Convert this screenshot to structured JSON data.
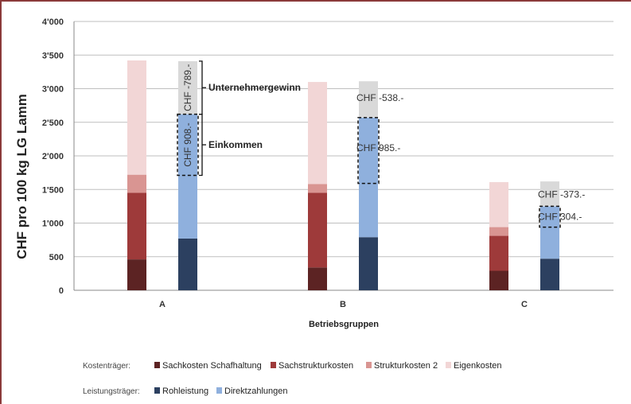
{
  "chart_data": {
    "type": "bar",
    "xlabel": "Betriebsgruppen",
    "ylabel": "CHF pro 100 kg LG Lamm",
    "ylim": [
      0,
      4000
    ],
    "y_ticks": [
      "0",
      "500",
      "1'000",
      "1'500",
      "2'000",
      "2'500",
      "3'000",
      "3'500",
      "4'000"
    ],
    "grid": true,
    "categories": [
      "A",
      "B",
      "C"
    ],
    "cost_series": [
      {
        "name": "Sachkosten Schafhaltung",
        "color": "#5c2323",
        "values": [
          460,
          340,
          290
        ]
      },
      {
        "name": "Sachstrukturkosten",
        "color": "#9e3a3a",
        "values": [
          990,
          1110,
          520
        ]
      },
      {
        "name": "Strukturkosten 2",
        "color": "#d99592",
        "values": [
          270,
          130,
          130
        ]
      },
      {
        "name": "Eigenkosten",
        "color": "#f2d6d6",
        "values": [
          1700,
          1520,
          670
        ]
      }
    ],
    "revenue_series": [
      {
        "name": "Rohleistung",
        "color": "#2c4060",
        "values": [
          770,
          790,
          470
        ]
      },
      {
        "name": "Direktzahlungen",
        "color": "#8fb0dd",
        "values": [
          1850,
          1780,
          780
        ]
      },
      {
        "name": "",
        "color": "#d9d9d9",
        "values": [
          790,
          540,
          370
        ]
      }
    ],
    "annotations": {
      "unternehmergewinn": [
        "CHF -789.-",
        "CHF -538.-",
        "CHF -373.-"
      ],
      "einkommen": [
        "CHF 908.-",
        "CHF 985.-",
        "CHF 304.-"
      ],
      "einkommen_ranges": [
        [
          1710,
          2620
        ],
        [
          1590,
          2570
        ],
        [
          940,
          1250
        ]
      ],
      "brackets": [
        "Unternehmergewinn",
        "Einkommen"
      ]
    },
    "legend": {
      "placement": "bottom",
      "kosten_label": "Kostenträger:",
      "leistung_label": "Leistungsträger:"
    }
  }
}
